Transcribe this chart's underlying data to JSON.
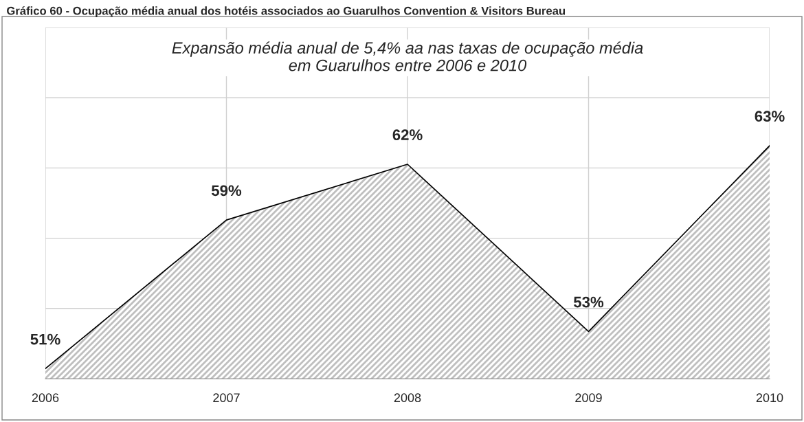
{
  "chart_data": {
    "type": "area",
    "title": "Gráfico 60 - Ocupação média anual dos hotéis associados ao Guarulhos Convention & Visitors Bureau",
    "annotations": [
      "Expansão média anual de 5,4% aa nas taxas de ocupação média\nem Guarulhos entre 2006 e 2010"
    ],
    "categories": [
      "2006",
      "2007",
      "2008",
      "2009",
      "2010"
    ],
    "series": [
      {
        "color": "#bfbfbf",
        "values": [
          51,
          59,
          62,
          53,
          63
        ],
        "value_labels": [
          "51%",
          "59%",
          "62%",
          "53%",
          "63%"
        ]
      }
    ],
    "grid": true,
    "tick_labels": "x"
  }
}
